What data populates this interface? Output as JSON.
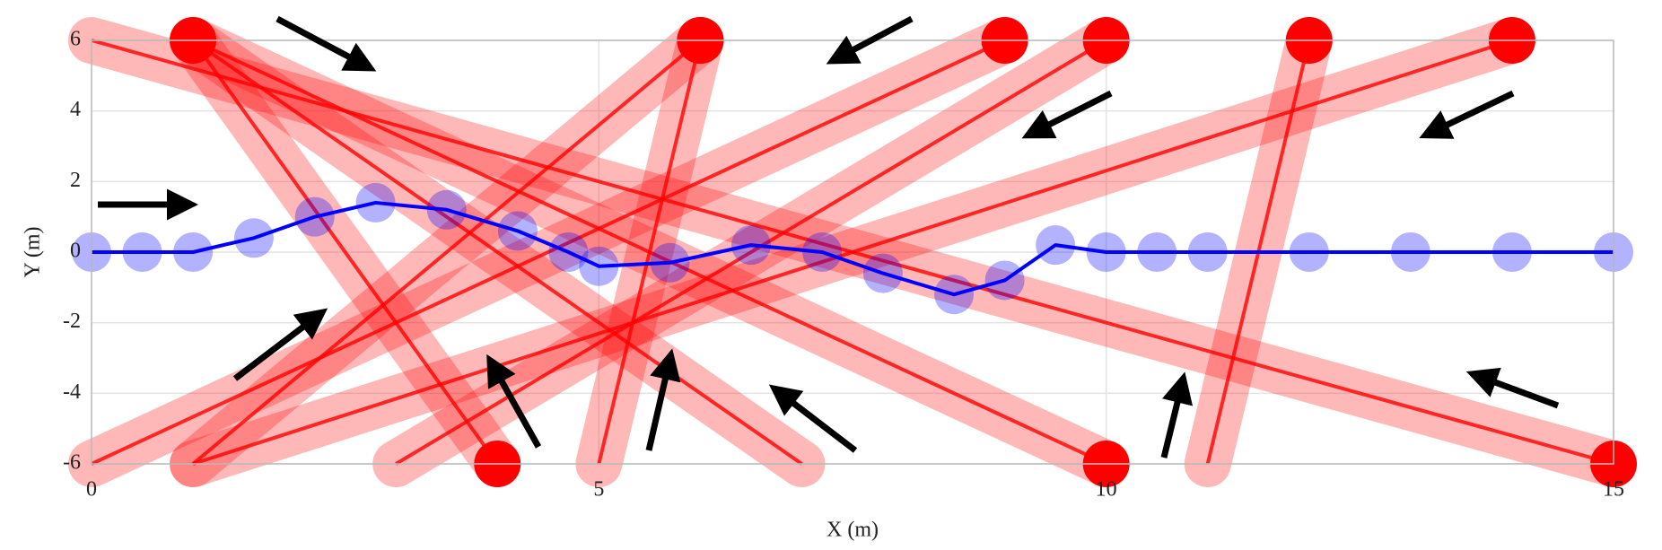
{
  "chart_data": {
    "type": "line",
    "x_label": "X (m)",
    "y_label": "Y (m)",
    "xlim": [
      0,
      15
    ],
    "xticks": [
      0,
      5,
      10,
      15
    ],
    "ylim": [
      -6,
      6
    ],
    "yticks": [
      -6,
      -4,
      -2,
      0,
      2,
      4,
      6
    ],
    "grid": true,
    "obstacle_color": "#ff0000",
    "robot_color": "#0000ff",
    "obstacles": [
      {
        "x": [
          0,
          15
        ],
        "y": [
          6,
          -6
        ]
      },
      {
        "x": [
          1,
          4
        ],
        "y": [
          6,
          -6
        ]
      },
      {
        "x": [
          1,
          10
        ],
        "y": [
          6,
          -6
        ]
      },
      {
        "x": [
          7,
          1
        ],
        "y": [
          -6,
          6
        ]
      },
      {
        "x": [
          5,
          6
        ],
        "y": [
          -6,
          6
        ]
      },
      {
        "x": [
          1,
          6
        ],
        "y": [
          -6,
          6
        ]
      },
      {
        "x": [
          0,
          9
        ],
        "y": [
          -6,
          6
        ]
      },
      {
        "x": [
          3,
          10
        ],
        "y": [
          -6,
          6
        ]
      },
      {
        "x": [
          11,
          12
        ],
        "y": [
          -6,
          6
        ]
      },
      {
        "x": [
          1,
          14
        ],
        "y": [
          -6,
          6
        ]
      }
    ],
    "robot": {
      "x": [
        0,
        0.5,
        1,
        1.6,
        2.2,
        2.8,
        3.5,
        4.2,
        4.7,
        5,
        5.7,
        6.5,
        7.2,
        7.8,
        8.5,
        9,
        9.5,
        10,
        10.5,
        11,
        12,
        13,
        14,
        15
      ],
      "y": [
        0,
        0,
        0,
        0.4,
        1,
        1.4,
        1.2,
        0.6,
        0,
        -0.4,
        -0.3,
        0.2,
        0,
        -0.6,
        -1.2,
        -0.8,
        0.2,
        0,
        0,
        0,
        0,
        0,
        0,
        0
      ]
    }
  }
}
